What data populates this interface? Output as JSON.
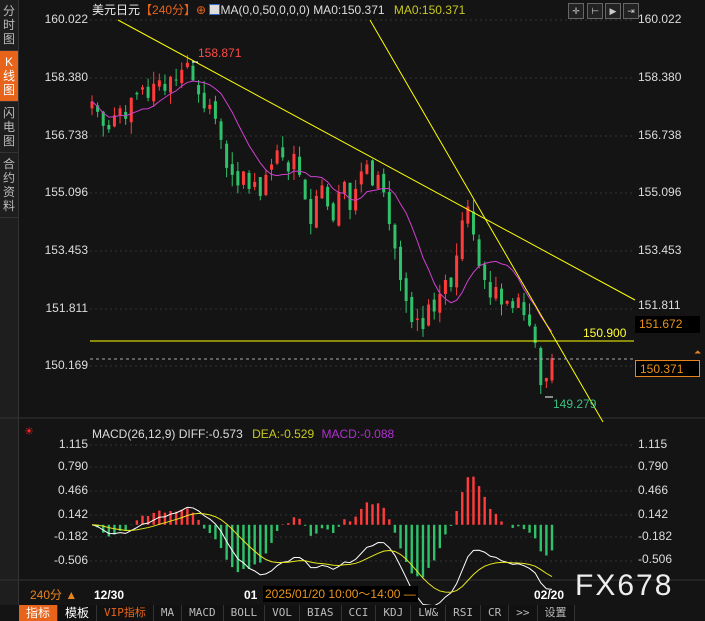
{
  "sidebar": {
    "tabs": [
      {
        "label": "分时图",
        "active": false
      },
      {
        "label": "K线图",
        "active": true
      },
      {
        "label": "闪电图",
        "active": false
      },
      {
        "label": "合约资料",
        "active": false
      }
    ]
  },
  "header": {
    "symbol": "美元日元",
    "period": "【240分】",
    "ma_formula": "MA(0,0,50,0,0,0)",
    "ma0_white": "MA0:150.371",
    "ma0_yellow": "MA0:150.371"
  },
  "toolbar_icons": [
    "crosshair-icon",
    "zoom-range-icon",
    "play-icon",
    "step-forward-icon"
  ],
  "price_axis": {
    "ticks": [
      "160.022",
      "158.380",
      "156.738",
      "155.096",
      "153.453",
      "151.811",
      "150.169"
    ]
  },
  "annotations": {
    "high": "158.871",
    "low": "149.279",
    "support": "150.900",
    "last_label": "151.672",
    "current": "150.371"
  },
  "macd": {
    "title": "MACD(26,12,9)",
    "diff": "DIFF:-0.573",
    "dea": "DEA:-0.529",
    "macd": "MACD:-0.088",
    "ticks": [
      "1.115",
      "0.790",
      "0.466",
      "0.142",
      "-0.182",
      "-0.506"
    ]
  },
  "time_axis": {
    "period_label": "240分 ▲",
    "start": "12/30",
    "mid": "01",
    "cursor_time": "2025/01/20 10:00～14:00 —",
    "end": "02/20"
  },
  "watermark": "FX678",
  "bottom_tabs": [
    "指标",
    "模板",
    "VIP指标",
    "MA",
    "MACD",
    "BOLL",
    "VOL",
    "BIAS",
    "CCI",
    "KDJ",
    "LW&",
    "RSI",
    "CR",
    ">>",
    "设置"
  ],
  "colors": {
    "up": "#ff3b3b",
    "down": "#2fc26a",
    "ma": "#d040d0",
    "trend": "#ffff00",
    "accent": "#e8641b"
  },
  "chart_data": {
    "type": "candlestick",
    "closes": [
      157.7,
      157.4,
      157.0,
      156.9,
      157.3,
      157.5,
      157.2,
      157.8,
      157.9,
      158.1,
      157.8,
      158.2,
      158.3,
      158.0,
      158.4,
      158.3,
      158.6,
      158.8,
      158.3,
      157.9,
      157.5,
      157.6,
      157.2,
      156.6,
      155.8,
      155.6,
      155.3,
      155.7,
      155.2,
      155.4,
      155.0,
      155.6,
      155.9,
      156.3,
      156.1,
      155.7,
      156.2,
      155.6,
      154.9,
      154.2,
      155.0,
      155.3,
      154.7,
      154.3,
      155.1,
      155.4,
      154.6,
      155.2,
      155.7,
      155.9,
      155.3,
      155.6,
      155.1,
      154.2,
      153.5,
      152.6,
      152.0,
      151.4,
      151.5,
      151.2,
      151.9,
      151.7,
      152.2,
      152.6,
      152.4,
      153.3,
      154.3,
      154.7,
      153.9,
      153.0,
      152.6,
      152.1,
      152.4,
      151.9,
      152.0,
      151.8,
      152.1,
      151.6,
      151.3,
      150.8,
      149.6,
      149.8,
      150.371
    ],
    "ylim": [
      149.0,
      160.022
    ],
    "macd_ylim": [
      -0.6,
      1.115
    ]
  }
}
